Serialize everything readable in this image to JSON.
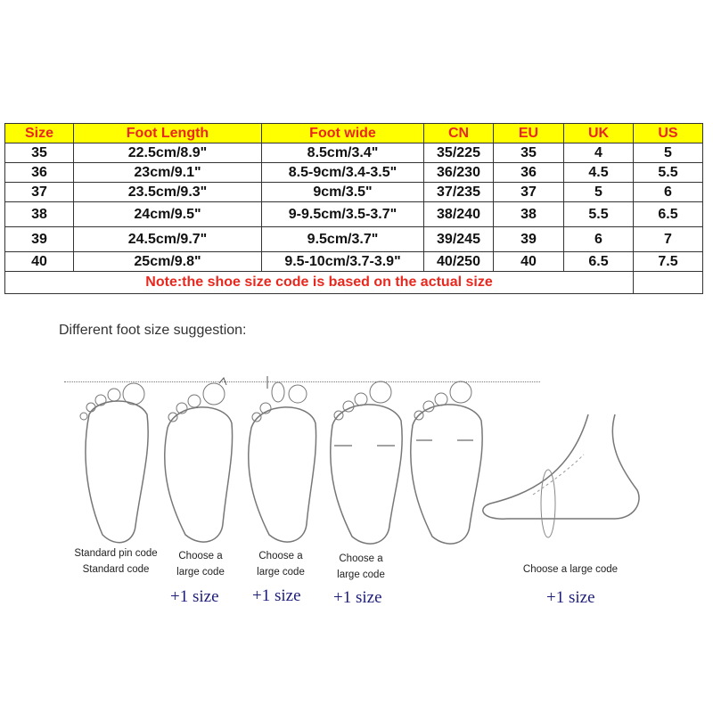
{
  "table": {
    "headers": [
      "Size",
      "Foot Length",
      "Foot wide",
      "CN",
      "EU",
      "UK",
      "US"
    ],
    "rows": [
      [
        "35",
        "22.5cm/8.9\"",
        "8.5cm/3.4\"",
        "35/225",
        "35",
        "4",
        "5"
      ],
      [
        "36",
        "23cm/9.1\"",
        "8.5-9cm/3.4-3.5\"",
        "36/230",
        "36",
        "4.5",
        "5.5"
      ],
      [
        "37",
        "23.5cm/9.3\"",
        "9cm/3.5\"",
        "37/235",
        "37",
        "5",
        "6"
      ],
      [
        "38",
        "24cm/9.5\"",
        "9-9.5cm/3.5-3.7\"",
        "38/240",
        "38",
        "5.5",
        "6.5"
      ],
      [
        "39",
        "24.5cm/9.7\"",
        "9.5cm/3.7\"",
        "39/245",
        "39",
        "6",
        "7"
      ],
      [
        "40",
        "25cm/9.8\"",
        "9.5-10cm/3.7-3.9\"",
        "40/250",
        "40",
        "6.5",
        "7.5"
      ]
    ],
    "note": "Note:the shoe size code is based on the actual size"
  },
  "suggestion": {
    "title": "Different foot size suggestion:",
    "items": [
      {
        "caption1": "Standard pin code",
        "caption2": "Standard code",
        "plus": ""
      },
      {
        "caption1": "Choose a",
        "caption2": "large code",
        "plus": "+1 size"
      },
      {
        "caption1": "Choose a",
        "caption2": "large code",
        "plus": "+1 size"
      },
      {
        "caption1": "Choose a",
        "caption2": "large code",
        "plus": "+1 size"
      },
      {
        "caption1": "",
        "caption2": "",
        "plus": ""
      },
      {
        "caption1": "Choose a large code",
        "caption2": "",
        "plus": "+1 size"
      }
    ]
  },
  "colors": {
    "header_bg": "#ffff00",
    "header_text": "#e8281e",
    "note_text": "#e8281e",
    "plus_text": "#1c1c7a"
  }
}
